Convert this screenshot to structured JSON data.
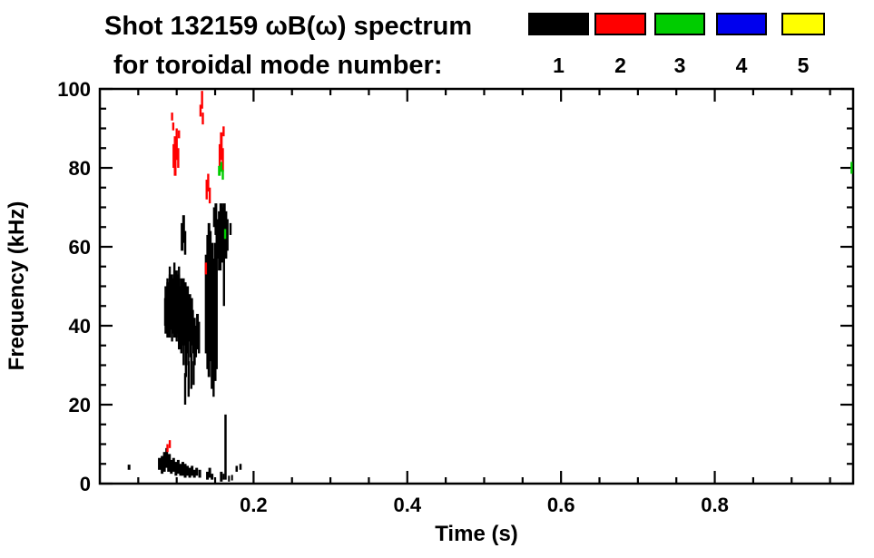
{
  "chart_data": {
    "type": "scatter",
    "title": "Shot 132159 ωB(ω) spectrum",
    "subtitle": "for toroidal mode number:",
    "xlabel": "Time (s)",
    "ylabel": "Frequency (kHz)",
    "xlim": [
      0,
      0.98
    ],
    "ylim": [
      0,
      100
    ],
    "xticks": [
      0.2,
      0.4,
      0.6,
      0.8
    ],
    "xtick_labels": [
      "0.2",
      "0.4",
      "0.6",
      "0.8"
    ],
    "yticks": [
      0,
      20,
      40,
      60,
      80,
      100
    ],
    "ytick_labels": [
      "0",
      "20",
      "40",
      "60",
      "80",
      "100"
    ],
    "x_minor_step": 0.05,
    "y_minor_step": 5,
    "grid": false,
    "legend": {
      "position": "top-right",
      "entries": [
        {
          "label": "1",
          "color": "#000000"
        },
        {
          "label": "2",
          "color": "#ff0000"
        },
        {
          "label": "3",
          "color": "#00cc00"
        },
        {
          "label": "4",
          "color": "#0000ee"
        },
        {
          "label": "5",
          "color": "#ffff00"
        }
      ]
    },
    "series": [
      {
        "name": "toroidal mode 1",
        "color": "#000000",
        "segments": [
          [
            0.038,
            3.5,
            4.8,
            3
          ],
          [
            0.078,
            3.5,
            6.5,
            4
          ],
          [
            0.081,
            2.5,
            7,
            3
          ],
          [
            0.084,
            3,
            8,
            3
          ],
          [
            0.087,
            4,
            9,
            3
          ],
          [
            0.09,
            3,
            7.5,
            4
          ],
          [
            0.093,
            2.5,
            6,
            3
          ],
          [
            0.096,
            3,
            6.5,
            3
          ],
          [
            0.099,
            2,
            5.5,
            3
          ],
          [
            0.102,
            2.5,
            6,
            3
          ],
          [
            0.105,
            2,
            5,
            3
          ],
          [
            0.108,
            2,
            5.5,
            3
          ],
          [
            0.111,
            1.5,
            5,
            3
          ],
          [
            0.114,
            2,
            4.5,
            3
          ],
          [
            0.117,
            1.5,
            4,
            3
          ],
          [
            0.12,
            2,
            4.5,
            3
          ],
          [
            0.123,
            1.5,
            3.5,
            3
          ],
          [
            0.126,
            2,
            4,
            3
          ],
          [
            0.13,
            1.5,
            3.5,
            3
          ],
          [
            0.14,
            1,
            3,
            3
          ],
          [
            0.143,
            1.5,
            4,
            3
          ],
          [
            0.146,
            1,
            2.5,
            3
          ],
          [
            0.158,
            0.5,
            3,
            3
          ],
          [
            0.161,
            1,
            2.5,
            2
          ],
          [
            0.1635,
            1,
            17.5,
            2.5
          ],
          [
            0.168,
            0.5,
            2,
            2
          ],
          [
            0.172,
            0.8,
            2.2,
            2
          ],
          [
            0.178,
            3,
            4.5,
            2.5
          ],
          [
            0.183,
            3.5,
            5,
            2.5
          ],
          [
            0.085,
            40,
            47
          ],
          [
            0.0865,
            38,
            50,
            4
          ],
          [
            0.088,
            41,
            52
          ],
          [
            0.0895,
            37,
            51,
            5
          ],
          [
            0.091,
            40,
            55
          ],
          [
            0.0925,
            39,
            53,
            5
          ],
          [
            0.094,
            36,
            50
          ],
          [
            0.0955,
            38,
            52,
            5
          ],
          [
            0.097,
            40,
            56
          ],
          [
            0.0985,
            37,
            54,
            5
          ],
          [
            0.1,
            36,
            51
          ],
          [
            0.1015,
            38,
            53,
            5
          ],
          [
            0.103,
            36,
            55
          ],
          [
            0.1045,
            34,
            50,
            5
          ],
          [
            0.106,
            33,
            48
          ],
          [
            0.1075,
            35,
            52,
            5
          ],
          [
            0.109,
            30,
            49
          ],
          [
            0.1105,
            35,
            51,
            4
          ],
          [
            0.112,
            27,
            47
          ],
          [
            0.1135,
            33,
            50,
            4
          ],
          [
            0.115,
            30,
            46
          ],
          [
            0.1165,
            36,
            48,
            4
          ],
          [
            0.118,
            32,
            45
          ],
          [
            0.1195,
            35,
            47,
            3
          ],
          [
            0.121,
            33,
            44
          ],
          [
            0.123,
            30,
            42,
            3
          ],
          [
            0.125,
            32,
            40
          ],
          [
            0.127,
            34,
            43,
            3
          ],
          [
            0.129,
            33,
            41
          ],
          [
            0.111,
            20,
            28
          ],
          [
            0.1155,
            22,
            31
          ],
          [
            0.119,
            24,
            33
          ],
          [
            0.122,
            25,
            31
          ],
          [
            0.107,
            59,
            66,
            3
          ],
          [
            0.109,
            61,
            68,
            3
          ],
          [
            0.111,
            58,
            64,
            2.5
          ],
          [
            0.138,
            33,
            58
          ],
          [
            0.14,
            29,
            63
          ],
          [
            0.142,
            27,
            66,
            3
          ],
          [
            0.144,
            31,
            64
          ],
          [
            0.146,
            24,
            61,
            3
          ],
          [
            0.148,
            22,
            57
          ],
          [
            0.15,
            26,
            61,
            3
          ],
          [
            0.152,
            29,
            64
          ],
          [
            0.149,
            65,
            70,
            3
          ],
          [
            0.151,
            63,
            71,
            3
          ],
          [
            0.154,
            57,
            67,
            3
          ],
          [
            0.156,
            54,
            69,
            4
          ],
          [
            0.158,
            59,
            71,
            4
          ],
          [
            0.16,
            56,
            70,
            4
          ],
          [
            0.162,
            61,
            71,
            3
          ],
          [
            0.164,
            57,
            69,
            3
          ],
          [
            0.166,
            59,
            67,
            2.5
          ],
          [
            0.1615,
            45,
            58
          ],
          [
            0.17,
            63,
            66
          ]
        ]
      },
      {
        "name": "toroidal mode 2",
        "color": "#ff0000",
        "segments": [
          [
            0.094,
            92,
            94
          ],
          [
            0.0955,
            89.5,
            91.5
          ],
          [
            0.096,
            80,
            86
          ],
          [
            0.098,
            78,
            88,
            3
          ],
          [
            0.1,
            82,
            90
          ],
          [
            0.102,
            80,
            85
          ],
          [
            0.103,
            87.5,
            89.5
          ],
          [
            0.131,
            93,
            96
          ],
          [
            0.133,
            95,
            99.5
          ],
          [
            0.134,
            91,
            94
          ],
          [
            0.139,
            72,
            77
          ],
          [
            0.141,
            74,
            78.5
          ],
          [
            0.143,
            71,
            75
          ],
          [
            0.156,
            80,
            86
          ],
          [
            0.158,
            82,
            89,
            3
          ],
          [
            0.16,
            79,
            85
          ],
          [
            0.161,
            88,
            90.5
          ],
          [
            0.138,
            53,
            56
          ],
          [
            0.088,
            8,
            10
          ],
          [
            0.091,
            9,
            11
          ]
        ]
      },
      {
        "name": "toroidal mode 3",
        "color": "#00cc00",
        "segments": [
          [
            0.1555,
            78,
            80.5,
            3
          ],
          [
            0.158,
            79,
            81.5
          ],
          [
            0.16,
            77,
            79.5
          ],
          [
            0.163,
            62,
            64.5
          ],
          [
            0.978,
            78.5,
            81.5
          ]
        ]
      },
      {
        "name": "toroidal mode 4",
        "color": "#0000ee",
        "segments": []
      },
      {
        "name": "toroidal mode 5",
        "color": "#ffff00",
        "segments": []
      }
    ]
  }
}
